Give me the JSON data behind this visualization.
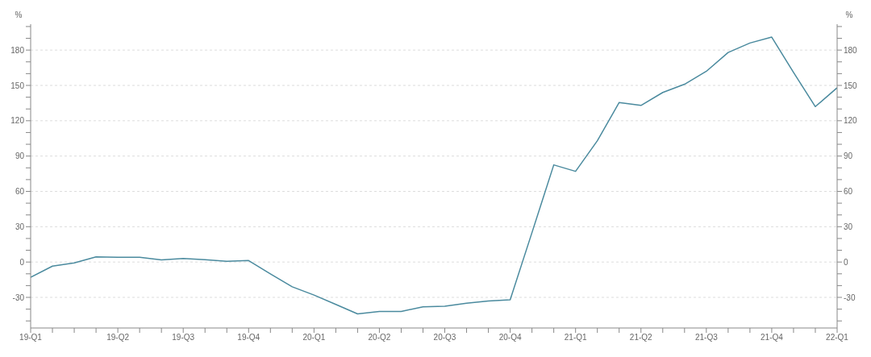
{
  "chart_data": {
    "type": "line",
    "categories": [
      "19-Q1",
      null,
      null,
      null,
      "19-Q2",
      null,
      null,
      "19-Q3",
      null,
      null,
      "19-Q4",
      null,
      null,
      "20-Q1",
      null,
      null,
      "20-Q2",
      null,
      null,
      "20-Q3",
      null,
      null,
      "20-Q4",
      null,
      null,
      "21-Q1",
      null,
      null,
      "21-Q2",
      null,
      null,
      "21-Q3",
      null,
      null,
      "21-Q4",
      null,
      null,
      "22-Q1"
    ],
    "series": [
      {
        "color": "#4a8a9e",
        "values": [
          -13,
          -3.5,
          -0.7,
          4.4,
          4,
          4,
          1.8,
          3,
          2,
          0.7,
          1.3,
          -10,
          -21,
          -28,
          -36,
          -44,
          -42,
          -42,
          -38,
          -37.6,
          -35,
          -33,
          -32,
          25,
          82.5,
          77,
          103,
          135.5,
          133,
          144,
          151,
          162,
          178,
          186,
          191,
          161,
          132,
          148
        ]
      }
    ],
    "ylabel": "%",
    "y2label": "%",
    "ylim": [
      -56,
      202
    ],
    "yticks": [
      {
        "value": -50,
        "label": null
      },
      {
        "value": -40,
        "label": null
      },
      -30,
      {
        "value": -20,
        "label": null
      },
      {
        "value": -10,
        "label": null
      },
      0,
      {
        "value": 10,
        "label": null
      },
      {
        "value": 20,
        "label": null
      },
      30,
      {
        "value": 40,
        "label": null
      },
      {
        "value": 50,
        "label": null
      },
      60,
      {
        "value": 70,
        "label": null
      },
      {
        "value": 80,
        "label": null
      },
      90,
      {
        "value": 100,
        "label": null
      },
      {
        "value": 110,
        "label": null
      },
      120,
      {
        "value": 130,
        "label": null
      },
      {
        "value": 140,
        "label": null
      },
      150,
      {
        "value": 160,
        "label": null
      },
      {
        "value": 170,
        "label": null
      },
      180,
      {
        "value": 190,
        "label": null
      },
      {
        "value": 200,
        "label": null
      }
    ],
    "y2lim": [
      -56,
      202
    ],
    "y2ticks": [
      {
        "value": -50,
        "label": null
      },
      {
        "value": -40,
        "label": null
      },
      -30,
      {
        "value": -20,
        "label": null
      },
      {
        "value": -10,
        "label": null
      },
      0,
      {
        "value": 10,
        "label": null
      },
      {
        "value": 20,
        "label": null
      },
      30,
      {
        "value": 40,
        "label": null
      },
      {
        "value": 50,
        "label": null
      },
      60,
      {
        "value": 70,
        "label": null
      },
      {
        "value": 80,
        "label": null
      },
      90,
      {
        "value": 100,
        "label": null
      },
      {
        "value": 110,
        "label": null
      },
      120,
      {
        "value": 130,
        "label": null
      },
      {
        "value": 140,
        "label": null
      },
      150,
      {
        "value": 160,
        "label": null
      },
      {
        "value": 170,
        "label": null
      },
      180,
      {
        "value": 190,
        "label": null
      },
      {
        "value": 200,
        "label": null
      }
    ],
    "grid": "y",
    "legend": false,
    "marker": "none",
    "line_style": "solid"
  }
}
